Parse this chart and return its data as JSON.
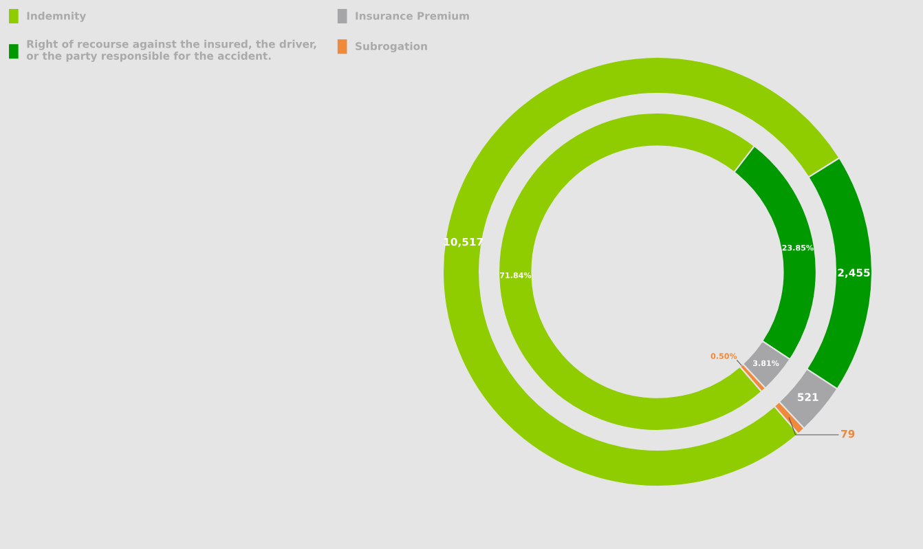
{
  "chart_data": {
    "type": "donut",
    "categories": [
      "Indemnity",
      "Right of recourse against the insured, the driver,\nor the party responsible for the accident.",
      "Insurance Premium",
      "Subrogation"
    ],
    "colors": [
      "#8fcc00",
      "#009900",
      "#a6a6a8",
      "#ef8a3c"
    ],
    "series": [
      {
        "values": [
          10517,
          2455,
          521,
          79
        ],
        "value_labels": [
          "10,517",
          "2,455",
          "521",
          "79"
        ]
      },
      {
        "values": [
          71.84,
          23.85,
          3.81,
          0.5
        ],
        "value_labels": [
          "71.84%",
          "23.85%",
          "3.81%",
          "0.50%"
        ]
      }
    ],
    "legend": "top left"
  }
}
